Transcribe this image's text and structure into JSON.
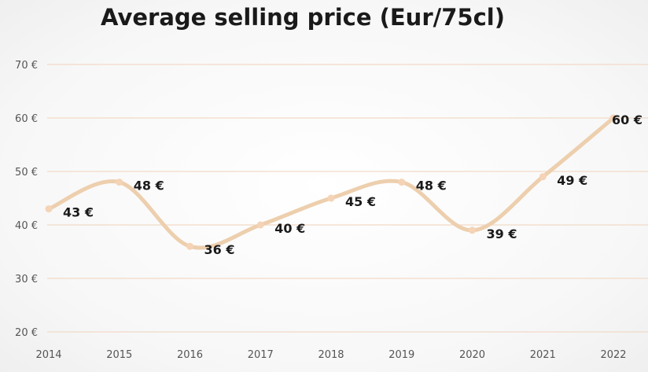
{
  "chart_data": {
    "type": "line",
    "title": "Average selling price (Eur/75cl)",
    "xlabel": "",
    "ylabel": "",
    "categories": [
      "2014",
      "2015",
      "2016",
      "2017",
      "2018",
      "2019",
      "2020",
      "2021",
      "2022"
    ],
    "series": [
      {
        "name": "Average selling price",
        "values": [
          43,
          48,
          36,
          40,
          45,
          48,
          39,
          49,
          60
        ],
        "color": "#EDCFAE"
      }
    ],
    "data_labels": [
      "43 €",
      "48 €",
      "36 €",
      "40 €",
      "45 €",
      "48 €",
      "39 €",
      "49 €",
      "60 €"
    ],
    "ylim": [
      20,
      70
    ],
    "yticks": [
      20,
      30,
      40,
      50,
      60,
      70
    ],
    "ytick_labels": [
      "20 €",
      "30 €",
      "40 €",
      "50 €",
      "60 €",
      "70 €"
    ],
    "grid": true,
    "grid_color": "#F2D9C6",
    "smooth": true
  }
}
